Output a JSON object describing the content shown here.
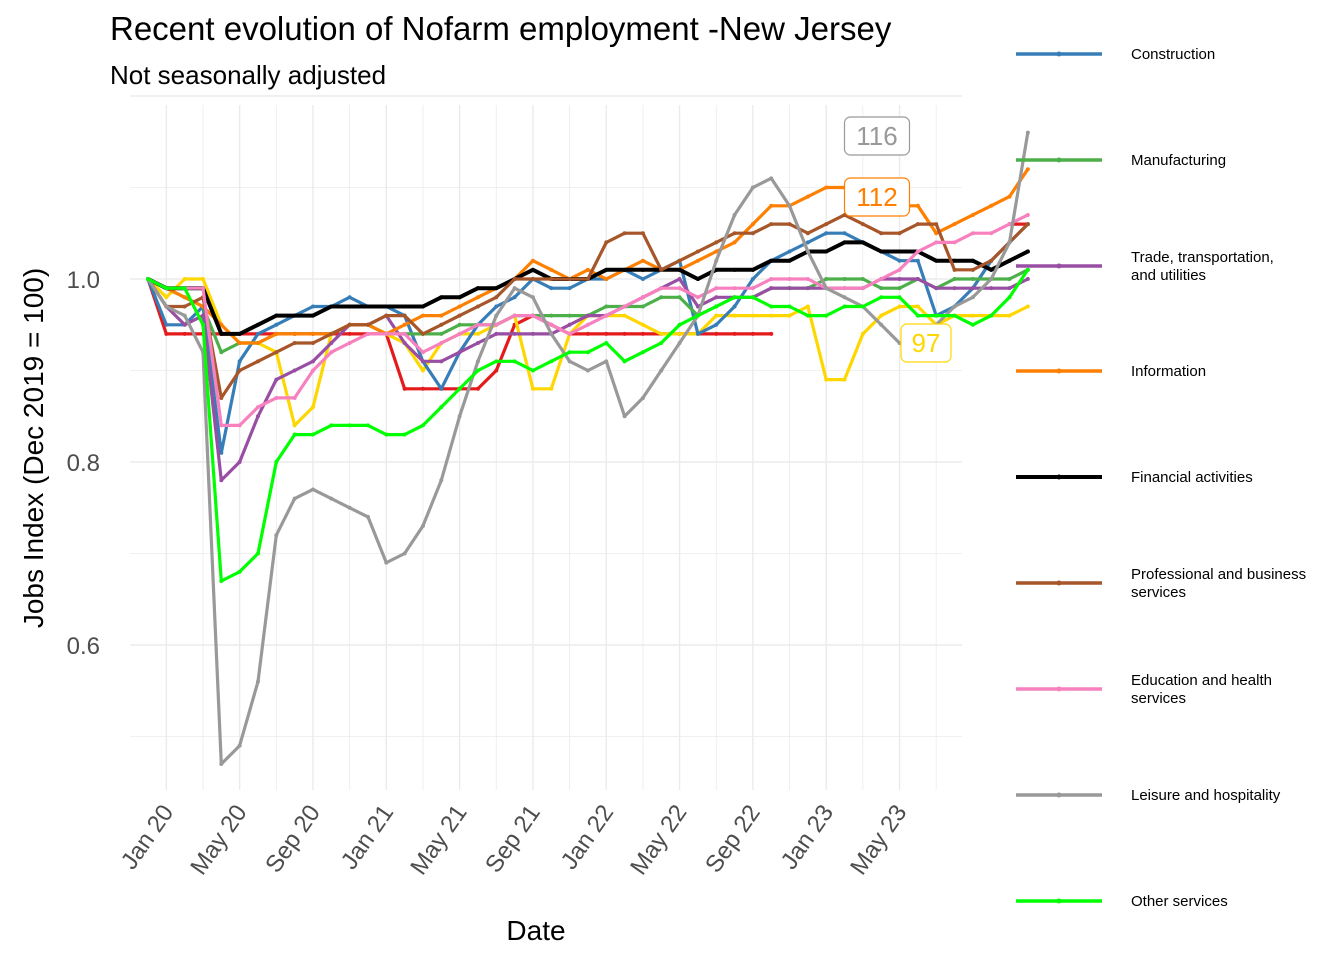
{
  "chart_data": {
    "type": "line",
    "title": "Recent evolution of Nofarm employment -New Jersey",
    "subtitle": "Not seasonally adjusted",
    "xlabel": "Date",
    "ylabel": "Jobs Index (Dec 2019 = 100)",
    "ylim": [
      0.44,
      1.24
    ],
    "yticks": [
      0.6,
      0.8,
      1.0
    ],
    "ytick_labels": [
      "0.6",
      "0.8",
      "1.0"
    ],
    "xticks": [
      "2020-01",
      "2020-05",
      "2020-09",
      "2021-01",
      "2021-05",
      "2021-09",
      "2022-01",
      "2022-05",
      "2022-09",
      "2023-01",
      "2023-05"
    ],
    "xtick_labels": [
      "Jan 20",
      "May 20",
      "Sep 20",
      "Jan 21",
      "May 21",
      "Sep 21",
      "Jan 22",
      "May 22",
      "Sep 22",
      "Jan 23",
      "May 23"
    ],
    "x_start": "2019-12",
    "grid": true,
    "legend_position": "right",
    "series": [
      {
        "name": "Construction",
        "color": "#377eb8",
        "values": [
          1.0,
          0.95,
          0.95,
          0.97,
          0.81,
          0.91,
          0.94,
          0.95,
          0.96,
          0.97,
          0.97,
          0.98,
          0.97,
          0.97,
          0.96,
          0.91,
          0.88,
          0.92,
          0.95,
          0.97,
          0.98,
          1.0,
          0.99,
          0.99,
          1.0,
          1.0,
          1.01,
          1.0,
          1.01,
          1.02,
          0.94,
          0.95,
          0.97,
          1.0,
          1.02,
          1.03,
          1.04,
          1.05,
          1.05,
          1.04,
          1.03,
          1.02,
          1.02,
          0.96,
          0.97,
          0.99,
          1.02,
          1.04,
          1.06
        ]
      },
      {
        "name": "Manufacturing",
        "color": "#4daf4a",
        "values": [
          1.0,
          0.99,
          0.98,
          0.97,
          0.92,
          0.93,
          0.93,
          0.94,
          0.94,
          0.94,
          0.94,
          0.95,
          0.95,
          0.94,
          0.94,
          0.94,
          0.94,
          0.95,
          0.95,
          0.95,
          0.96,
          0.96,
          0.96,
          0.96,
          0.96,
          0.97,
          0.97,
          0.97,
          0.98,
          0.98,
          0.96,
          0.97,
          0.98,
          0.98,
          0.99,
          0.99,
          0.99,
          1.0,
          1.0,
          1.0,
          0.99,
          0.99,
          1.0,
          0.99,
          1.0,
          1.0,
          1.0,
          1.0,
          1.01
        ]
      },
      {
        "name": "Trade, transportation, and utilities",
        "color": "#984ea3",
        "values": [
          1.0,
          0.97,
          0.95,
          0.96,
          0.78,
          0.8,
          0.85,
          0.89,
          0.9,
          0.91,
          0.93,
          0.95,
          0.95,
          0.96,
          0.93,
          0.91,
          0.91,
          0.92,
          0.93,
          0.94,
          0.94,
          0.94,
          0.94,
          0.95,
          0.96,
          0.96,
          0.97,
          0.98,
          0.99,
          1.0,
          0.97,
          0.98,
          0.98,
          0.98,
          0.99,
          0.99,
          0.99,
          0.99,
          0.99,
          0.99,
          1.0,
          1.0,
          1.0,
          0.99,
          0.99,
          0.99,
          0.99,
          0.99,
          1.0
        ]
      },
      {
        "name": "Information",
        "color": "#ff7f00",
        "values": [
          1.0,
          0.99,
          0.98,
          0.97,
          0.95,
          0.93,
          0.93,
          0.94,
          0.94,
          0.94,
          0.94,
          0.95,
          0.95,
          0.94,
          0.95,
          0.96,
          0.96,
          0.97,
          0.98,
          0.99,
          1.0,
          1.02,
          1.01,
          1.0,
          1.01,
          1.0,
          1.01,
          1.02,
          1.01,
          1.01,
          1.02,
          1.03,
          1.04,
          1.06,
          1.08,
          1.08,
          1.09,
          1.1,
          1.1,
          1.09,
          1.08,
          1.08,
          1.08,
          1.05,
          1.06,
          1.07,
          1.08,
          1.09,
          1.12
        ]
      },
      {
        "name": "Financial activities",
        "color": "#000000",
        "values": [
          1.0,
          0.99,
          0.99,
          0.99,
          0.94,
          0.94,
          0.95,
          0.96,
          0.96,
          0.96,
          0.97,
          0.97,
          0.97,
          0.97,
          0.97,
          0.97,
          0.98,
          0.98,
          0.99,
          0.99,
          1.0,
          1.01,
          1.0,
          1.0,
          1.0,
          1.01,
          1.01,
          1.01,
          1.01,
          1.01,
          1.0,
          1.01,
          1.01,
          1.01,
          1.02,
          1.02,
          1.03,
          1.03,
          1.04,
          1.04,
          1.03,
          1.03,
          1.03,
          1.02,
          1.02,
          1.02,
          1.01,
          1.02,
          1.03
        ]
      },
      {
        "name": "Professional and business services",
        "color": "#a65628",
        "values": [
          1.0,
          0.97,
          0.97,
          0.98,
          0.87,
          0.9,
          0.91,
          0.92,
          0.93,
          0.93,
          0.94,
          0.95,
          0.95,
          0.96,
          0.96,
          0.94,
          0.95,
          0.96,
          0.97,
          0.98,
          1.0,
          1.0,
          1.0,
          1.0,
          1.0,
          1.04,
          1.05,
          1.05,
          1.01,
          1.02,
          1.03,
          1.04,
          1.05,
          1.05,
          1.06,
          1.06,
          1.05,
          1.06,
          1.07,
          1.06,
          1.05,
          1.05,
          1.06,
          1.06,
          1.01,
          1.01,
          1.02,
          1.04,
          1.06
        ]
      },
      {
        "name": "Education and health services",
        "color": "#f781bf",
        "values": [
          1.0,
          0.99,
          0.99,
          0.99,
          0.84,
          0.84,
          0.86,
          0.87,
          0.87,
          0.9,
          0.92,
          0.93,
          0.94,
          0.94,
          0.94,
          0.92,
          0.93,
          0.94,
          0.95,
          0.95,
          0.96,
          0.96,
          0.95,
          0.94,
          0.95,
          0.96,
          0.97,
          0.98,
          0.99,
          0.99,
          0.98,
          0.99,
          0.99,
          0.99,
          1.0,
          1.0,
          1.0,
          0.99,
          0.99,
          0.99,
          1.0,
          1.01,
          1.03,
          1.04,
          1.04,
          1.05,
          1.05,
          1.06,
          1.07
        ]
      },
      {
        "name": "Leisure and hospitality",
        "color": "#999999",
        "values": [
          1.0,
          0.97,
          0.96,
          0.92,
          0.47,
          0.49,
          0.56,
          0.72,
          0.76,
          0.77,
          0.76,
          0.75,
          0.74,
          0.69,
          0.7,
          0.73,
          0.78,
          0.85,
          0.91,
          0.96,
          0.99,
          0.98,
          0.94,
          0.91,
          0.9,
          0.91,
          0.85,
          0.87,
          0.9,
          0.93,
          0.96,
          1.02,
          1.07,
          1.1,
          1.11,
          1.08,
          1.03,
          0.99,
          0.98,
          0.97,
          0.95,
          0.93,
          0.92,
          0.95,
          0.97,
          0.98,
          1.0,
          1.04,
          1.16
        ]
      },
      {
        "name": "Other services",
        "color": "#00ff00",
        "values": [
          1.0,
          0.99,
          0.99,
          0.95,
          0.67,
          0.68,
          0.7,
          0.8,
          0.83,
          0.83,
          0.84,
          0.84,
          0.84,
          0.83,
          0.83,
          0.84,
          0.86,
          0.88,
          0.9,
          0.91,
          0.91,
          0.9,
          0.91,
          0.92,
          0.92,
          0.93,
          0.91,
          0.92,
          0.93,
          0.95,
          0.96,
          0.97,
          0.98,
          0.98,
          0.97,
          0.97,
          0.96,
          0.96,
          0.97,
          0.97,
          0.98,
          0.98,
          0.96,
          0.96,
          0.96,
          0.95,
          0.96,
          0.98,
          1.01
        ]
      }
    ],
    "extra_series": [
      {
        "color": "#e41a1c",
        "values": [
          1.0,
          0.94,
          0.94,
          0.94,
          0.94,
          0.94,
          0.94,
          0.94,
          0.94,
          0.94,
          0.94,
          0.94,
          0.94,
          0.94,
          0.88,
          0.88,
          0.88,
          0.88,
          0.88,
          0.9,
          0.95,
          0.96,
          0.95,
          0.94,
          0.94,
          0.94,
          0.94,
          0.94,
          0.94,
          0.94,
          0.94,
          0.94,
          0.94,
          0.94,
          0.94,
          null,
          null,
          null,
          null,
          null,
          null,
          null,
          null,
          null,
          null,
          null,
          null,
          1.06,
          1.06
        ]
      },
      {
        "color": "#ffd700",
        "values": [
          1.0,
          0.98,
          1.0,
          1.0,
          0.95,
          0.93,
          0.93,
          0.92,
          0.84,
          0.86,
          0.94,
          0.95,
          0.95,
          0.94,
          0.93,
          0.9,
          0.93,
          0.94,
          0.94,
          0.95,
          0.96,
          0.88,
          0.88,
          0.94,
          0.96,
          0.96,
          0.96,
          0.95,
          0.94,
          0.94,
          0.94,
          0.96,
          0.96,
          0.96,
          0.96,
          0.96,
          0.97,
          0.89,
          0.89,
          0.94,
          0.96,
          0.97,
          0.97,
          0.95,
          0.96,
          0.96,
          0.96,
          0.96,
          0.97
        ]
      }
    ],
    "end_labels": [
      {
        "text": "116",
        "color": "#999999",
        "y": 1.16
      },
      {
        "text": "112",
        "color": "#ff7f00",
        "y": 1.12
      },
      {
        "text": "97",
        "color": "#ffd700",
        "y": 0.92
      }
    ]
  }
}
